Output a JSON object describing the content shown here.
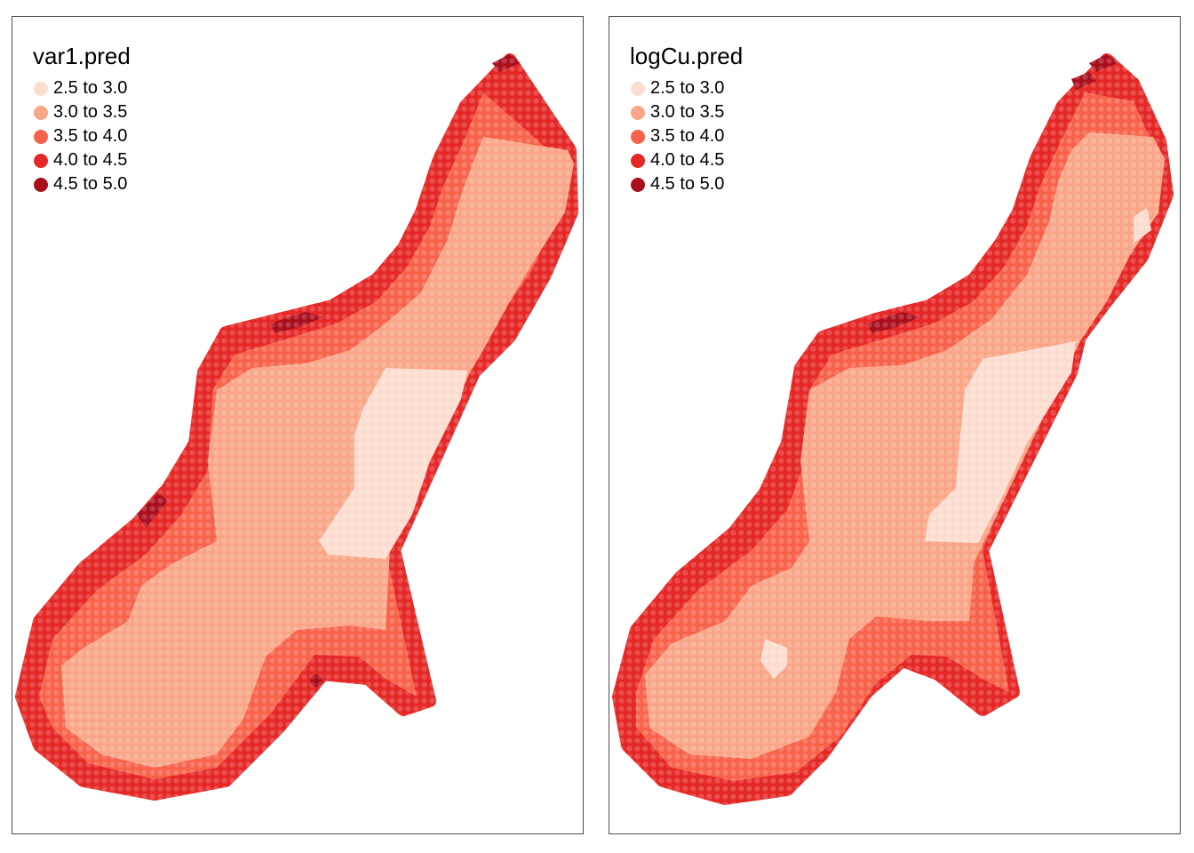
{
  "panels": [
    {
      "title": "var1.pred",
      "legend": [
        {
          "label": "2.5 to 3.0",
          "color": "#fcddd0"
        },
        {
          "label": "3.0 to 3.5",
          "color": "#f9a688"
        },
        {
          "label": "3.5 to 4.0",
          "color": "#f7624a"
        },
        {
          "label": "4.0 to 4.5",
          "color": "#e52826"
        },
        {
          "label": "4.5 to 5.0",
          "color": "#a90e1b"
        }
      ]
    },
    {
      "title": "logCu.pred",
      "legend": [
        {
          "label": "2.5 to 3.0",
          "color": "#fcddd0"
        },
        {
          "label": "3.0 to 3.5",
          "color": "#f9a688"
        },
        {
          "label": "3.5 to 4.0",
          "color": "#f7624a"
        },
        {
          "label": "4.0 to 4.5",
          "color": "#e52826"
        },
        {
          "label": "4.5 to 5.0",
          "color": "#a90e1b"
        }
      ]
    }
  ]
}
